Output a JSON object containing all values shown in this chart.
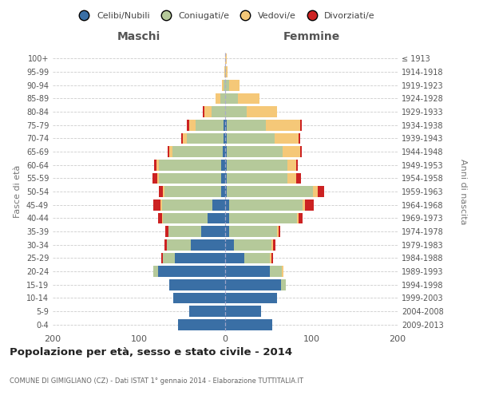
{
  "age_groups": [
    "0-4",
    "5-9",
    "10-14",
    "15-19",
    "20-24",
    "25-29",
    "30-34",
    "35-39",
    "40-44",
    "45-49",
    "50-54",
    "55-59",
    "60-64",
    "65-69",
    "70-74",
    "75-79",
    "80-84",
    "85-89",
    "90-94",
    "95-99",
    "100+"
  ],
  "birth_years": [
    "2009-2013",
    "2004-2008",
    "1999-2003",
    "1994-1998",
    "1989-1993",
    "1984-1988",
    "1979-1983",
    "1974-1978",
    "1969-1973",
    "1964-1968",
    "1959-1963",
    "1954-1958",
    "1949-1953",
    "1944-1948",
    "1939-1943",
    "1934-1938",
    "1929-1933",
    "1924-1928",
    "1919-1923",
    "1914-1918",
    "≤ 1913"
  ],
  "maschi": {
    "celibe": [
      55,
      42,
      60,
      65,
      78,
      58,
      40,
      28,
      20,
      15,
      5,
      5,
      5,
      3,
      2,
      2,
      0,
      0,
      0,
      0,
      0
    ],
    "coniugato": [
      0,
      0,
      0,
      0,
      5,
      14,
      28,
      38,
      52,
      58,
      65,
      72,
      72,
      58,
      42,
      32,
      16,
      6,
      2,
      0,
      0
    ],
    "vedovo": [
      0,
      0,
      0,
      0,
      0,
      0,
      0,
      0,
      1,
      2,
      2,
      2,
      3,
      4,
      5,
      8,
      8,
      5,
      2,
      1,
      0
    ],
    "divorziato": [
      0,
      0,
      0,
      0,
      0,
      2,
      2,
      3,
      5,
      8,
      5,
      5,
      2,
      2,
      2,
      2,
      2,
      0,
      0,
      0,
      0
    ]
  },
  "femmine": {
    "nubile": [
      55,
      42,
      60,
      65,
      52,
      22,
      10,
      5,
      5,
      5,
      2,
      2,
      2,
      2,
      2,
      2,
      0,
      0,
      0,
      0,
      0
    ],
    "coniugata": [
      0,
      0,
      0,
      5,
      14,
      30,
      44,
      55,
      78,
      85,
      100,
      70,
      70,
      65,
      55,
      45,
      25,
      15,
      5,
      1,
      0
    ],
    "vedova": [
      0,
      0,
      0,
      0,
      2,
      2,
      2,
      2,
      2,
      3,
      5,
      10,
      10,
      20,
      28,
      40,
      35,
      25,
      12,
      2,
      2
    ],
    "divorziata": [
      0,
      0,
      0,
      0,
      0,
      2,
      2,
      2,
      5,
      10,
      8,
      6,
      2,
      2,
      2,
      2,
      0,
      0,
      0,
      0,
      0
    ]
  },
  "colors": {
    "celibe": "#3a6fa5",
    "coniugato": "#b5c99a",
    "vedovo": "#f5c878",
    "divorziato": "#cc2222"
  },
  "title": "Popolazione per età, sesso e stato civile - 2014",
  "subtitle": "COMUNE DI GIMIGLIANO (CZ) - Dati ISTAT 1° gennaio 2014 - Elaborazione TUTTITALIA.IT",
  "xlabel_left": "Maschi",
  "xlabel_right": "Femmine",
  "ylabel_left": "Fasce di età",
  "ylabel_right": "Anni di nascita",
  "xlim": 200,
  "bg_color": "#ffffff",
  "legend_labels": [
    "Celibi/Nubili",
    "Coniugati/e",
    "Vedovi/e",
    "Divorziati/e"
  ]
}
